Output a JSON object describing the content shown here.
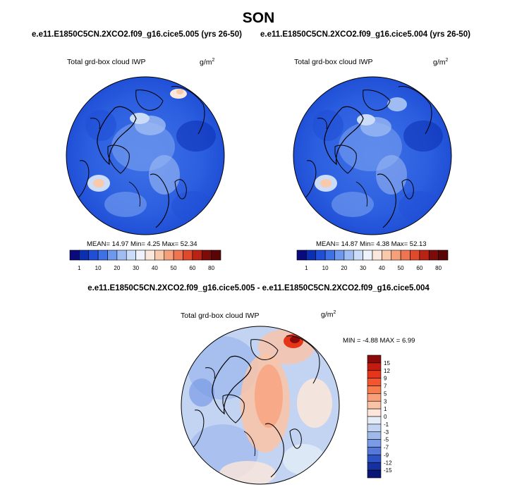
{
  "page": {
    "season": "SON"
  },
  "panel_left": {
    "case_title": "e.e11.E1850C5CN.2XCO2.f09_g16.cice5.005 (yrs 26-50)",
    "variable": "Total grd-box cloud IWP",
    "units_base": "g/m",
    "units_exp": "2",
    "stats_text": "MEAN= 14.97  Min=  4.25  Max= 52.34"
  },
  "panel_right": {
    "case_title": "e.e11.E1850C5CN.2XCO2.f09_g16.cice5.004 (yrs 26-50)",
    "variable": "Total grd-box cloud IWP",
    "units_base": "g/m",
    "units_exp": "2",
    "stats_text": "MEAN= 14.87  Min=  4.38  Max=  52.13"
  },
  "panel_diff": {
    "title": "e.e11.E1850C5CN.2XCO2.f09_g16.cice5.005 - e.e11.E1850C5CN.2XCO2.f09_g16.cice5.004",
    "variable": "Total grd-box cloud IWP",
    "units_base": "g/m",
    "units_exp": "2",
    "stats_text": "MIN =  -4.88 MAX =   6.99"
  },
  "chart_data": [
    {
      "type": "heatmap",
      "projection": "north-polar-stereographic",
      "title": "e.e11.E1850C5CN.2XCO2.f09_g16.cice5.005 (yrs 26-50)",
      "variable": "Total grd-box cloud IWP",
      "units": "g/m2",
      "mean": 14.97,
      "min": 4.25,
      "max": 52.34,
      "colorbar": {
        "orientation": "horizontal",
        "levels": [
          1,
          5,
          10,
          15,
          20,
          25,
          30,
          35,
          40,
          45,
          50,
          55,
          60,
          70,
          80
        ],
        "tick_labels": [
          "1",
          "10",
          "20",
          "30",
          "40",
          "50",
          "60",
          "80"
        ],
        "colors": [
          "#0a0a7d",
          "#0b2fb3",
          "#1f4fd6",
          "#3f71e6",
          "#6e97ee",
          "#9fbcf3",
          "#cbdcf8",
          "#eef3fb",
          "#fbe8dc",
          "#f9c9ac",
          "#f5a07b",
          "#ee7550",
          "#de4a2b",
          "#b92314",
          "#7d0c08",
          "#5a0505"
        ]
      }
    },
    {
      "type": "heatmap",
      "projection": "north-polar-stereographic",
      "title": "e.e11.E1850C5CN.2XCO2.f09_g16.cice5.004 (yrs 26-50)",
      "variable": "Total grd-box cloud IWP",
      "units": "g/m2",
      "mean": 14.87,
      "min": 4.38,
      "max": 52.13,
      "colorbar": {
        "orientation": "horizontal",
        "levels": [
          1,
          5,
          10,
          15,
          20,
          25,
          30,
          35,
          40,
          45,
          50,
          55,
          60,
          70,
          80
        ],
        "tick_labels": [
          "1",
          "10",
          "20",
          "30",
          "40",
          "50",
          "60",
          "80"
        ],
        "colors": [
          "#0a0a7d",
          "#0b2fb3",
          "#1f4fd6",
          "#3f71e6",
          "#6e97ee",
          "#9fbcf3",
          "#cbdcf8",
          "#eef3fb",
          "#fbe8dc",
          "#f9c9ac",
          "#f5a07b",
          "#ee7550",
          "#de4a2b",
          "#b92314",
          "#7d0c08",
          "#5a0505"
        ]
      }
    },
    {
      "type": "heatmap",
      "projection": "north-polar-stereographic",
      "title": "e.e11.E1850C5CN.2XCO2.f09_g16.cice5.005 - e.e11.E1850C5CN.2XCO2.f09_g16.cice5.004",
      "variable": "Total grd-box cloud IWP",
      "units": "g/m2",
      "min": -4.88,
      "max": 6.99,
      "colorbar": {
        "orientation": "vertical",
        "tick_labels": [
          "15",
          "12",
          "9",
          "7",
          "5",
          "3",
          "1",
          "0",
          "-1",
          "-3",
          "-5",
          "-7",
          "-9",
          "-12",
          "-15"
        ],
        "colors": [
          "#8b0a0a",
          "#c41a10",
          "#e5361a",
          "#f4552c",
          "#f77c4e",
          "#f9a07a",
          "#fbc3a6",
          "#fde6d9",
          "#e4ecf8",
          "#c3d4f3",
          "#9fb9ed",
          "#7a9be6",
          "#5479da",
          "#2d52c4",
          "#1630a0",
          "#0a1674"
        ]
      }
    }
  ]
}
